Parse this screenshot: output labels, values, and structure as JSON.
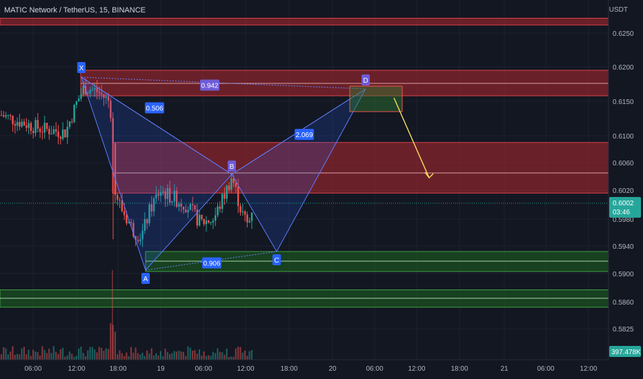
{
  "header": {
    "symbol_title": "MATIC Network / TetherUS, 15, BINANCE",
    "axis_unit": "USDT"
  },
  "chart_data": {
    "type": "candlestick",
    "symbol": "MATIC Network / TetherUS",
    "interval": "15",
    "exchange": "BINANCE",
    "price_axis": {
      "ticks": [
        "0.6250",
        "0.6200",
        "0.6150",
        "0.6100",
        "0.6060",
        "0.6020",
        "0.5980",
        "0.5940",
        "0.5900",
        "0.5860",
        "0.5825"
      ]
    },
    "time_axis": {
      "ticks": [
        "06:00",
        "12:00",
        "18:00",
        "19",
        "06:00",
        "12:00",
        "18:00",
        "20",
        "06:00",
        "12:00",
        "18:00",
        "21",
        "06:00",
        "12:00"
      ]
    },
    "current_price": {
      "price": "0.6002",
      "countdown": "03:46",
      "value": 0.6002
    },
    "volume_label": "397.478K",
    "zones": [
      {
        "type": "supply",
        "top": 0.6272,
        "bottom": 0.6262
      },
      {
        "type": "supply",
        "top": 0.6195,
        "bottom": 0.6158,
        "midline": 0.6176
      },
      {
        "type": "supply",
        "top": 0.609,
        "bottom": 0.6016,
        "midline": 0.6045
      },
      {
        "type": "demand",
        "top": 0.5932,
        "bottom": 0.5903,
        "midline": 0.5918
      },
      {
        "type": "demand",
        "top": 0.5877,
        "bottom": 0.5853,
        "midline": 0.5865
      }
    ],
    "harmonic_pattern": {
      "points": [
        {
          "label": "X",
          "time": "12:00",
          "price": 0.6185
        },
        {
          "label": "A",
          "time": "18:00",
          "price": 0.5905
        },
        {
          "label": "B",
          "time": "06:00",
          "price": 0.6043
        },
        {
          "label": "C",
          "time": "12:00",
          "price": 0.5932
        },
        {
          "label": "D",
          "time": "06:00",
          "price": 0.6168
        }
      ],
      "ratios": [
        "0.942",
        "0.506",
        "2.069",
        "0.906"
      ]
    },
    "prz_box": {
      "top": 0.6172,
      "bottom": 0.6135
    },
    "projection": {
      "from_price": 0.6155,
      "to_price": 0.605
    },
    "colors": {
      "background": "#131722",
      "bull": "#26a69a",
      "bear": "#ef5350",
      "pattern_fill": "#2962ff",
      "pattern_label": "#2962ff",
      "supply_fill": "#b2282f",
      "demand_fill": "#1b5e20",
      "projection_arrow": "#f5d65a",
      "price_label_bg": "#26a69a"
    }
  }
}
